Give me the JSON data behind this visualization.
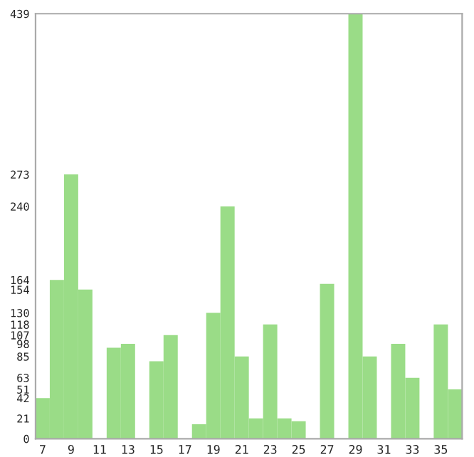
{
  "chart_data": {
    "type": "bar",
    "categories": [
      "7",
      null,
      "9",
      null,
      "11",
      null,
      "13",
      null,
      "15",
      null,
      "17",
      null,
      "19",
      null,
      "21",
      null,
      "23",
      null,
      "25",
      null,
      "27",
      null,
      "29",
      null,
      "31",
      null,
      "33",
      null,
      "35",
      null
    ],
    "values": [
      42,
      164,
      273,
      154,
      0,
      94,
      98,
      0,
      80,
      107,
      0,
      15,
      130,
      240,
      85,
      21,
      118,
      21,
      18,
      0,
      160,
      0,
      439,
      85,
      0,
      98,
      63,
      0,
      118,
      51
    ],
    "color": "#9adc87",
    "ylim": [
      0,
      439
    ],
    "yticks": [
      0,
      21,
      42,
      51,
      63,
      85,
      98,
      107,
      118,
      130,
      154,
      164,
      240,
      273,
      439
    ],
    "grid": false
  }
}
